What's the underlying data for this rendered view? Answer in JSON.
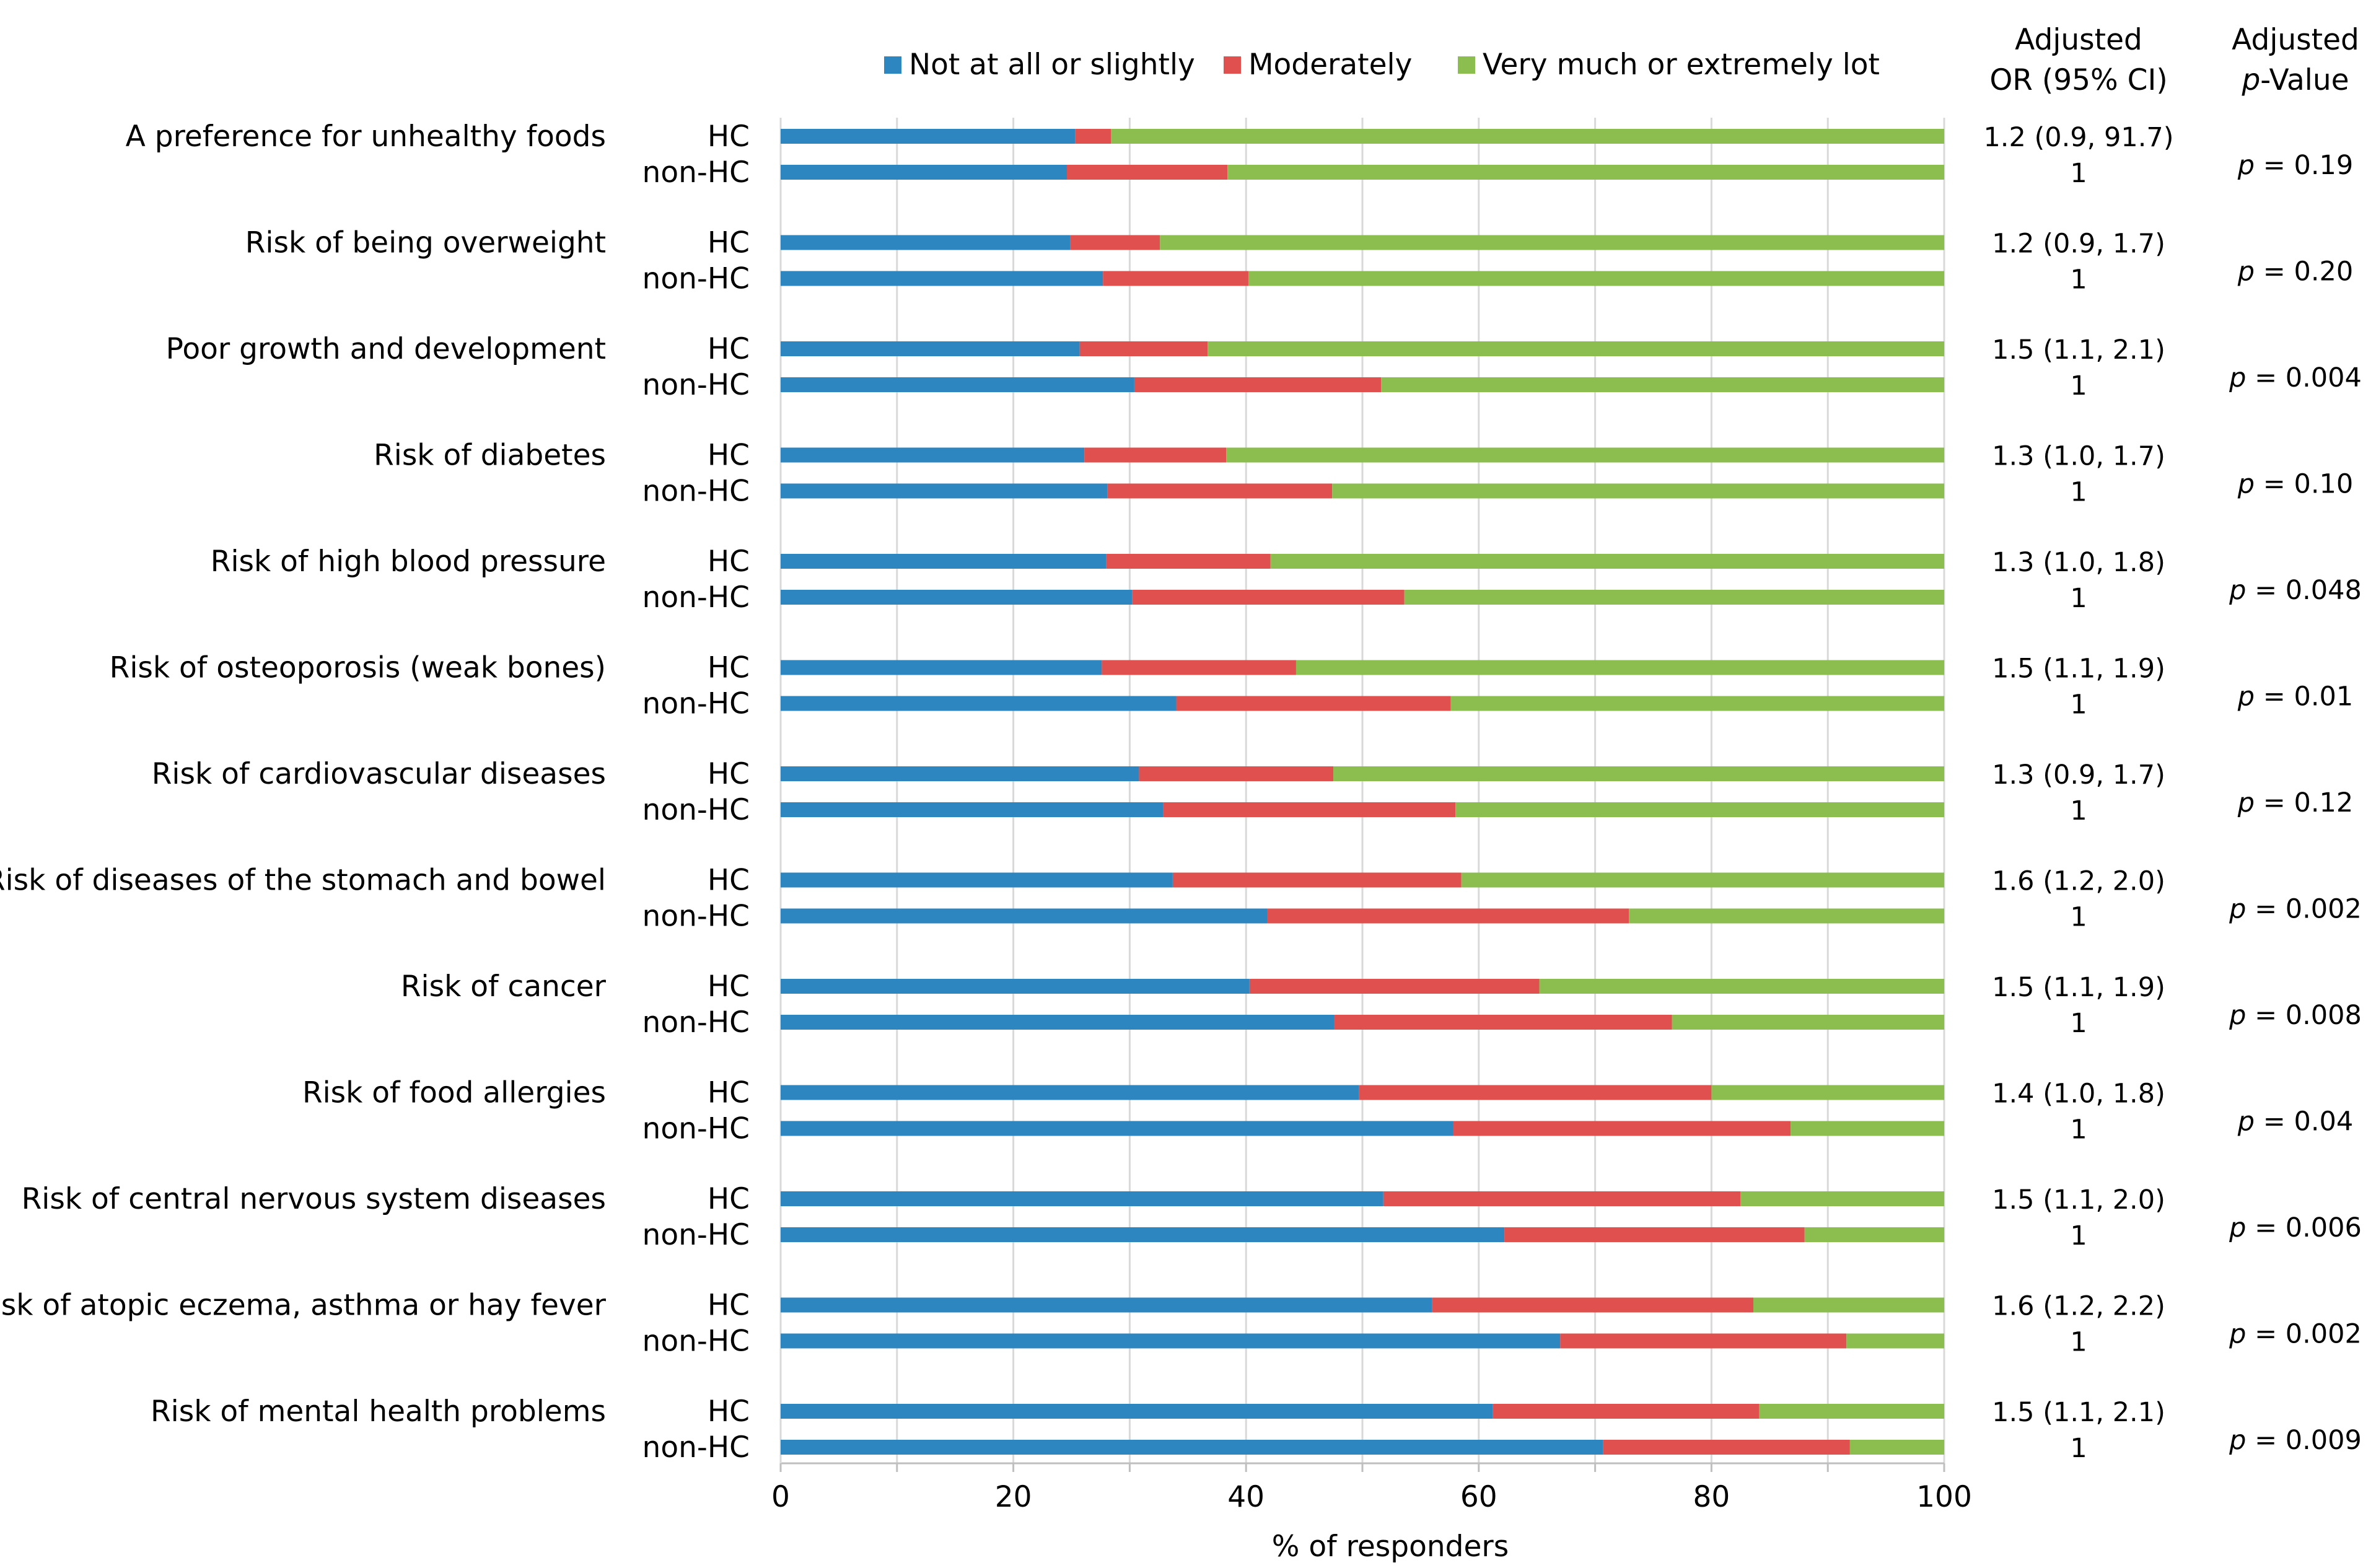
{
  "chart_data": {
    "type": "bar",
    "orientation": "horizontal",
    "stacked": true,
    "xlabel": "% of responders",
    "xlim": [
      0,
      100
    ],
    "xticks": [
      0,
      20,
      40,
      60,
      80,
      100
    ],
    "grid": "vertical",
    "legend": [
      {
        "label": "Not at all or slightly",
        "color": "#2E86C1"
      },
      {
        "label": "Moderately",
        "color": "#E0504F"
      },
      {
        "label": "Very much or extremely lot",
        "color": "#8CBD4F"
      }
    ],
    "legend_position": "top-center",
    "headers": {
      "or_line1": "Adjusted",
      "or_line2": "OR (95% CI)",
      "p_line1": "Adjusted",
      "p_line2_italic": "p",
      "p_line2_rest": "-Value"
    },
    "group_labels": [
      "HC",
      "non-HC"
    ],
    "categories": [
      {
        "label": "A preference for unhealthy foods",
        "hc": [
          25.3,
          3.1,
          71.6
        ],
        "nonhc": [
          24.6,
          13.8,
          61.6
        ],
        "or_hc": "1.2 (0.9, 91.7)",
        "or_nonhc": "1",
        "p": "0.19"
      },
      {
        "label": "Risk of being overweight",
        "hc": [
          24.9,
          7.7,
          67.4
        ],
        "nonhc": [
          27.7,
          12.5,
          59.8
        ],
        "or_hc": "1.2 (0.9, 1.7)",
        "or_nonhc": "1",
        "p": "0.20"
      },
      {
        "label": "Poor growth and development",
        "hc": [
          25.7,
          11.0,
          63.3
        ],
        "nonhc": [
          30.4,
          21.2,
          48.4
        ],
        "or_hc": "1.5 (1.1, 2.1)",
        "or_nonhc": "1",
        "p": "0.004"
      },
      {
        "label": "Risk of diabetes",
        "hc": [
          26.1,
          12.2,
          61.7
        ],
        "nonhc": [
          28.1,
          19.3,
          52.6
        ],
        "or_hc": "1.3 (1.0, 1.7)",
        "or_nonhc": "1",
        "p": "0.10"
      },
      {
        "label": "Risk of high blood pressure",
        "hc": [
          28.0,
          14.1,
          57.9
        ],
        "nonhc": [
          30.2,
          23.4,
          46.4
        ],
        "or_hc": "1.3 (1.0, 1.8)",
        "or_nonhc": "1",
        "p": "0.048"
      },
      {
        "label": "Risk of osteoporosis (weak bones)",
        "hc": [
          27.6,
          16.7,
          55.7
        ],
        "nonhc": [
          34.0,
          23.6,
          42.4
        ],
        "or_hc": "1.5 (1.1, 1.9)",
        "or_nonhc": "1",
        "p": "0.01"
      },
      {
        "label": "Risk of cardiovascular diseases",
        "hc": [
          30.8,
          16.7,
          52.5
        ],
        "nonhc": [
          32.9,
          25.1,
          42.0
        ],
        "or_hc": "1.3 (0.9, 1.7)",
        "or_nonhc": "1",
        "p": "0.12"
      },
      {
        "label": "Risk of diseases of the stomach and bowel",
        "hc": [
          33.7,
          24.8,
          41.5
        ],
        "nonhc": [
          41.8,
          31.1,
          27.1
        ],
        "or_hc": "1.6 (1.2, 2.0)",
        "or_nonhc": "1",
        "p": "0.002"
      },
      {
        "label": "Risk of cancer",
        "hc": [
          40.3,
          24.9,
          34.8
        ],
        "nonhc": [
          47.6,
          29.0,
          23.4
        ],
        "or_hc": "1.5 (1.1, 1.9)",
        "or_nonhc": "1",
        "p": "0.008"
      },
      {
        "label": "Risk of food allergies",
        "hc": [
          49.7,
          30.3,
          20.0
        ],
        "nonhc": [
          57.8,
          29.0,
          13.2
        ],
        "or_hc": "1.4 (1.0, 1.8)",
        "or_nonhc": "1",
        "p": "0.04"
      },
      {
        "label": "Risk of central nervous system diseases",
        "hc": [
          51.8,
          30.7,
          17.5
        ],
        "nonhc": [
          62.2,
          25.8,
          12.0
        ],
        "or_hc": "1.5 (1.1, 2.0)",
        "or_nonhc": "1",
        "p": "0.006"
      },
      {
        "label": "Risk of atopic eczema, asthma or hay fever",
        "hc": [
          56.0,
          27.6,
          16.4
        ],
        "nonhc": [
          67.0,
          24.6,
          8.4
        ],
        "or_hc": "1.6 (1.2, 2.2)",
        "or_nonhc": "1",
        "p": "0.002"
      },
      {
        "label": "Risk of mental health problems",
        "hc": [
          61.2,
          22.9,
          15.9
        ],
        "nonhc": [
          70.7,
          21.2,
          8.1
        ],
        "or_hc": "1.5 (1.1, 2.1)",
        "or_nonhc": "1",
        "p": "0.009"
      }
    ]
  }
}
